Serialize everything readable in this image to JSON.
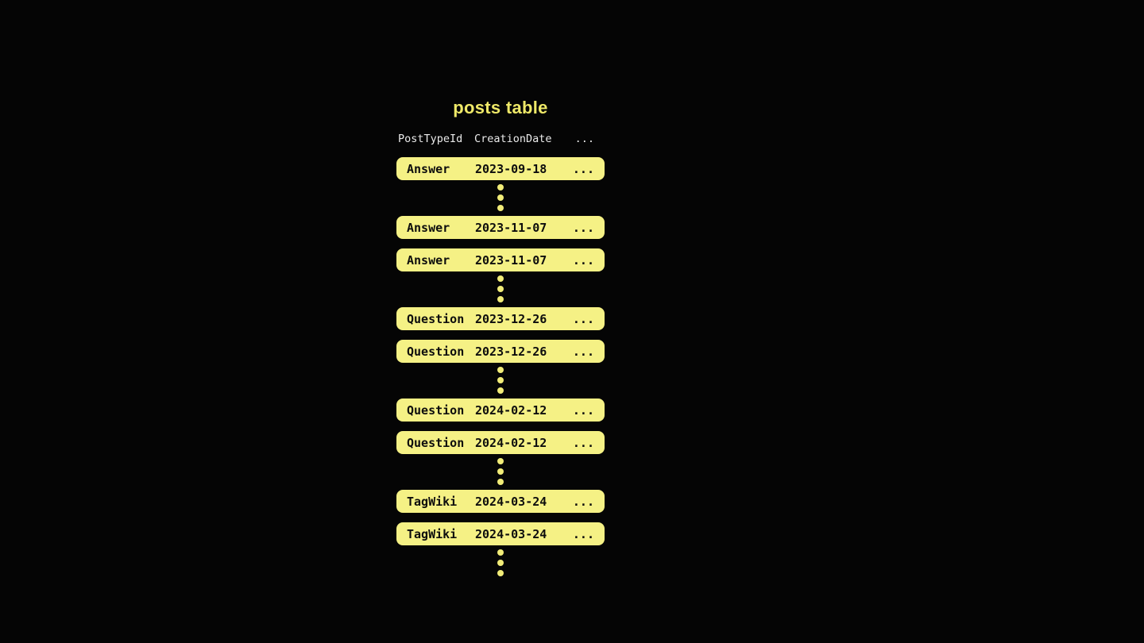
{
  "title": "posts table",
  "table": {
    "columns": {
      "post_type": "PostTypeId",
      "creation_date": "CreationDate",
      "more": "..."
    },
    "rows": [
      {
        "post_type": "Answer",
        "creation_date": "2023-09-18",
        "more": "..."
      },
      {
        "post_type": "Answer",
        "creation_date": "2023-11-07",
        "more": "..."
      },
      {
        "post_type": "Answer",
        "creation_date": "2023-11-07",
        "more": "..."
      },
      {
        "post_type": "Question",
        "creation_date": "2023-12-26",
        "more": "..."
      },
      {
        "post_type": "Question",
        "creation_date": "2023-12-26",
        "more": "..."
      },
      {
        "post_type": "Question",
        "creation_date": "2024-02-12",
        "more": "..."
      },
      {
        "post_type": "Question",
        "creation_date": "2024-02-12",
        "more": "..."
      },
      {
        "post_type": "TagWiki",
        "creation_date": "2024-03-24",
        "more": "..."
      },
      {
        "post_type": "TagWiki",
        "creation_date": "2024-03-24",
        "more": "..."
      }
    ]
  },
  "colors": {
    "background": "#050505",
    "title_text": "#efe968",
    "header_text": "#eaeaea",
    "row_fill": "#f5f185",
    "row_text": "#0d0d0d",
    "ellipsis_dot": "#f1ec78"
  }
}
